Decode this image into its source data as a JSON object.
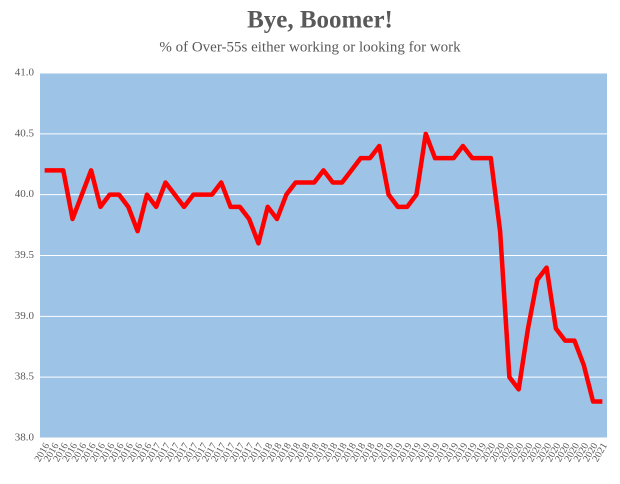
{
  "chart_data": {
    "type": "line",
    "title": "Bye, Boomer!",
    "subtitle": "% of Over-55s either working or looking for work",
    "categories": [
      "2016",
      "2016",
      "2016",
      "2016",
      "2016",
      "2016",
      "2016",
      "2016",
      "2016",
      "2016",
      "2016",
      "2016",
      "2017",
      "2017",
      "2017",
      "2017",
      "2017",
      "2017",
      "2017",
      "2017",
      "2017",
      "2017",
      "2017",
      "2017",
      "2018",
      "2018",
      "2018",
      "2018",
      "2018",
      "2018",
      "2018",
      "2018",
      "2018",
      "2018",
      "2018",
      "2018",
      "2019",
      "2019",
      "2019",
      "2019",
      "2019",
      "2019",
      "2019",
      "2019",
      "2019",
      "2019",
      "2019",
      "2019",
      "2020",
      "2020",
      "2020",
      "2020",
      "2020",
      "2020",
      "2020",
      "2020",
      "2020",
      "2020",
      "2020",
      "2020",
      "2021"
    ],
    "series": [
      {
        "color": "#ff0000",
        "values": [
          40.2,
          40.2,
          40.2,
          39.8,
          40.0,
          40.2,
          39.9,
          40.0,
          40.0,
          39.9,
          39.7,
          40.0,
          39.9,
          40.1,
          40.0,
          39.9,
          40.0,
          40.0,
          40.0,
          40.1,
          39.9,
          39.9,
          39.8,
          39.6,
          39.9,
          39.8,
          40.0,
          40.1,
          40.1,
          40.1,
          40.2,
          40.1,
          40.1,
          40.2,
          40.3,
          40.3,
          40.4,
          40.0,
          39.9,
          39.9,
          40.0,
          40.5,
          40.3,
          40.3,
          40.3,
          40.4,
          40.3,
          40.3,
          40.3,
          39.7,
          38.5,
          38.4,
          38.9,
          39.3,
          39.4,
          38.9,
          38.8,
          38.8,
          38.6,
          38.3,
          38.3
        ]
      }
    ],
    "ylim": [
      38.0,
      41.0
    ],
    "yticks": [
      {
        "value": 38.0,
        "label": "38.0"
      },
      38.5,
      {
        "value": 39.0,
        "label": "39.0"
      },
      39.5,
      {
        "value": 40.0,
        "label": "40.0"
      },
      40.5,
      {
        "value": 41.0,
        "label": "41.0"
      }
    ],
    "grid": true,
    "background": "#9dc3e6"
  }
}
